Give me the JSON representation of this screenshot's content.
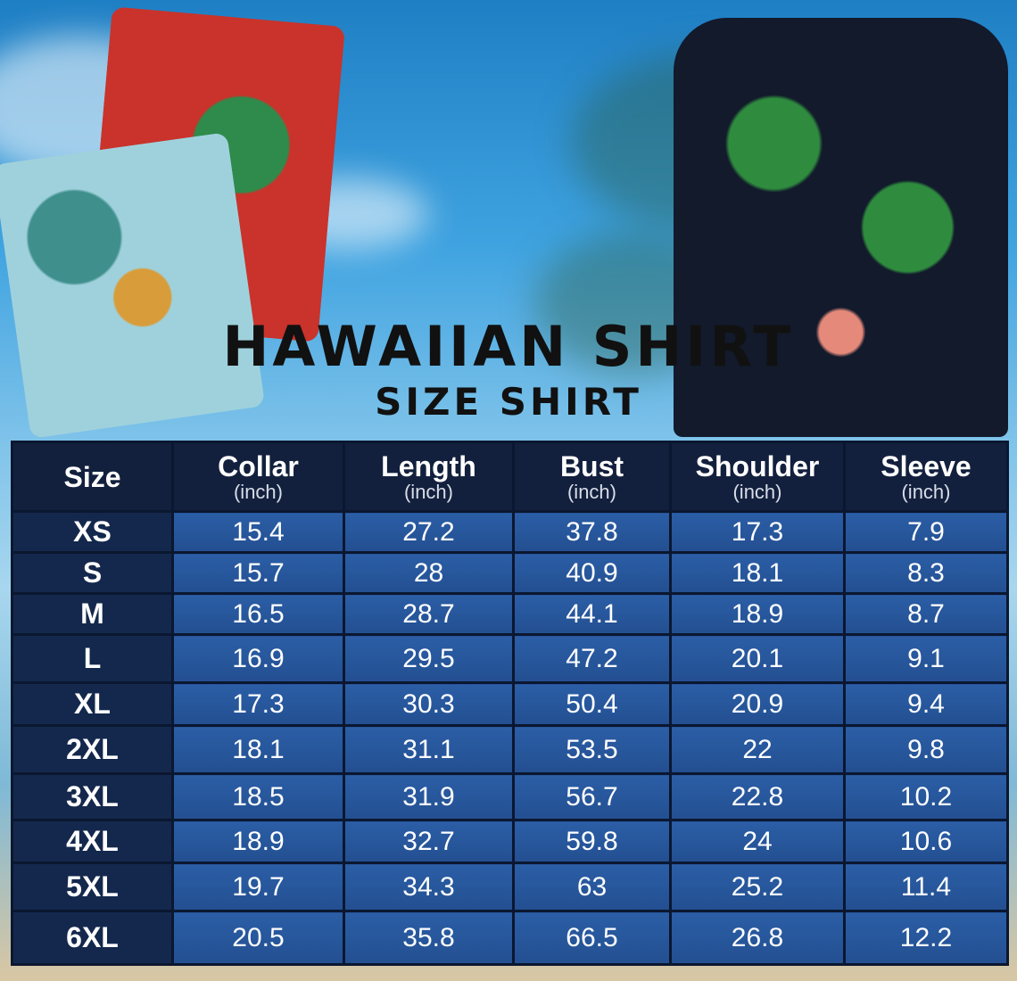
{
  "title": "HAWAIIAN SHIRT",
  "subtitle": "SIZE SHIRT",
  "table": {
    "headers": [
      {
        "label": "Size",
        "unit": ""
      },
      {
        "label": "Collar",
        "unit": "(inch)"
      },
      {
        "label": "Length",
        "unit": "(inch)"
      },
      {
        "label": "Bust",
        "unit": "(inch)"
      },
      {
        "label": "Shoulder",
        "unit": "(inch)"
      },
      {
        "label": "Sleeve",
        "unit": "(inch)"
      }
    ],
    "rows": [
      [
        "XS",
        "15.4",
        "27.2",
        "37.8",
        "17.3",
        "7.9"
      ],
      [
        "S",
        "15.7",
        "28",
        "40.9",
        "18.1",
        "8.3"
      ],
      [
        "M",
        "16.5",
        "28.7",
        "44.1",
        "18.9",
        "8.7"
      ],
      [
        "L",
        "16.9",
        "29.5",
        "47.2",
        "20.1",
        "9.1"
      ],
      [
        "XL",
        "17.3",
        "30.3",
        "50.4",
        "20.9",
        "9.4"
      ],
      [
        "2XL",
        "18.1",
        "31.1",
        "53.5",
        "22",
        "9.8"
      ],
      [
        "3XL",
        "18.5",
        "31.9",
        "56.7",
        "22.8",
        "10.2"
      ],
      [
        "4XL",
        "18.9",
        "32.7",
        "59.8",
        "24",
        "10.6"
      ],
      [
        "5XL",
        "19.7",
        "34.3",
        "63",
        "25.2",
        "11.4"
      ],
      [
        "6XL",
        "20.5",
        "35.8",
        "66.5",
        "26.8",
        "12.2"
      ]
    ]
  },
  "colors": {
    "header_bg": "#13203d",
    "cell_bg": "#2b5ea6",
    "size_bg": "#14284d",
    "border": "#0b1730"
  }
}
